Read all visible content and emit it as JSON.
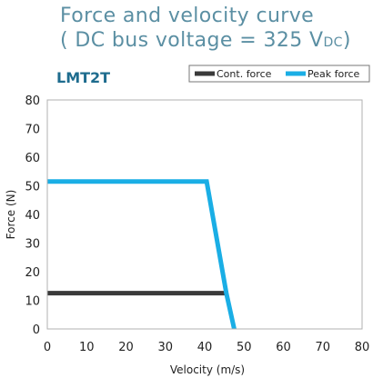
{
  "header": {
    "title_line1": "Force and velocity curve",
    "title_line2_prefix": "( DC bus voltage = 325 V",
    "title_line2_sub": "DC",
    "title_line2_suffix": ")",
    "model": "LMT2T"
  },
  "chart_data": {
    "type": "line",
    "xlabel": "Velocity (m/s)",
    "ylabel": "Force (N)",
    "xlim": [
      0,
      80
    ],
    "ylim": [
      0,
      80
    ],
    "xticks": [
      0,
      10,
      20,
      30,
      40,
      50,
      60,
      70,
      80
    ],
    "yticks": [
      0,
      10,
      20,
      30,
      40,
      50,
      60,
      70,
      80
    ],
    "grid": false,
    "legend_position": "top",
    "series": [
      {
        "name": "Cont. force",
        "color": "#3a3a3a",
        "x": [
          0,
          46
        ],
        "y": [
          12.5,
          12.5
        ]
      },
      {
        "name": "Peak force",
        "color": "#1aaee5",
        "x": [
          0,
          40.5,
          45.5,
          47.5
        ],
        "y": [
          51.5,
          51.5,
          12.5,
          0
        ]
      }
    ]
  }
}
